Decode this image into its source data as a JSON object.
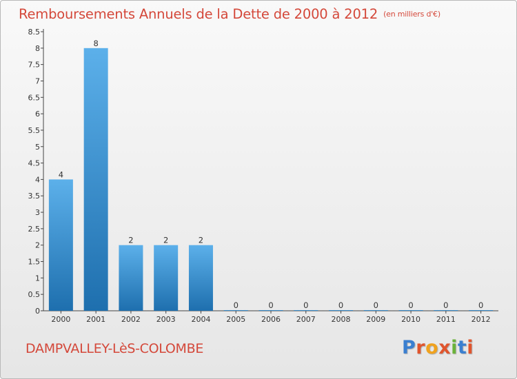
{
  "header": {
    "title": "Remboursements Annuels de la Dette de 2000 à 2012",
    "unit": "(en milliers d'€)"
  },
  "footer": {
    "commune": "DAMPVALLEY-LèS-COLOMBE",
    "logo": "Proxiti"
  },
  "colors": {
    "title": "#d4483a",
    "bar_top": "#5cb0ea",
    "bar_bottom": "#1e6fae",
    "logo_letters": [
      "#3a7fd0",
      "#e0552d",
      "#f0a21e",
      "#e0552d",
      "#6ab23a",
      "#3a7fd0",
      "#e0552d"
    ]
  },
  "chart_data": {
    "type": "bar",
    "categories": [
      "2000",
      "2001",
      "2002",
      "2003",
      "2004",
      "2005",
      "2006",
      "2007",
      "2008",
      "2009",
      "2010",
      "2011",
      "2012"
    ],
    "values": [
      4,
      8,
      2,
      2,
      2,
      0,
      0,
      0,
      0,
      0,
      0,
      0,
      0
    ],
    "data_labels": [
      "4",
      "8",
      "2",
      "2",
      "2",
      "0",
      "0",
      "0",
      "0",
      "0",
      "0",
      "0",
      "0"
    ],
    "title": "Remboursements Annuels de la Dette de 2000 à 2012",
    "ylim": [
      0,
      8.5
    ],
    "yticks": [
      0,
      0.5,
      1,
      1.5,
      2,
      2.5,
      3,
      3.5,
      4,
      4.5,
      5,
      5.5,
      6,
      6.5,
      7,
      7.5,
      8,
      8.5
    ],
    "ytick_labels": [
      "0",
      "0.5",
      "1",
      "1.5",
      "2",
      "2.5",
      "3",
      "3.5",
      "4",
      "4.5",
      "5",
      "5.5",
      "6",
      "6.5",
      "7",
      "7.5",
      "8",
      "8.5"
    ],
    "grid": false,
    "legend": "none"
  }
}
